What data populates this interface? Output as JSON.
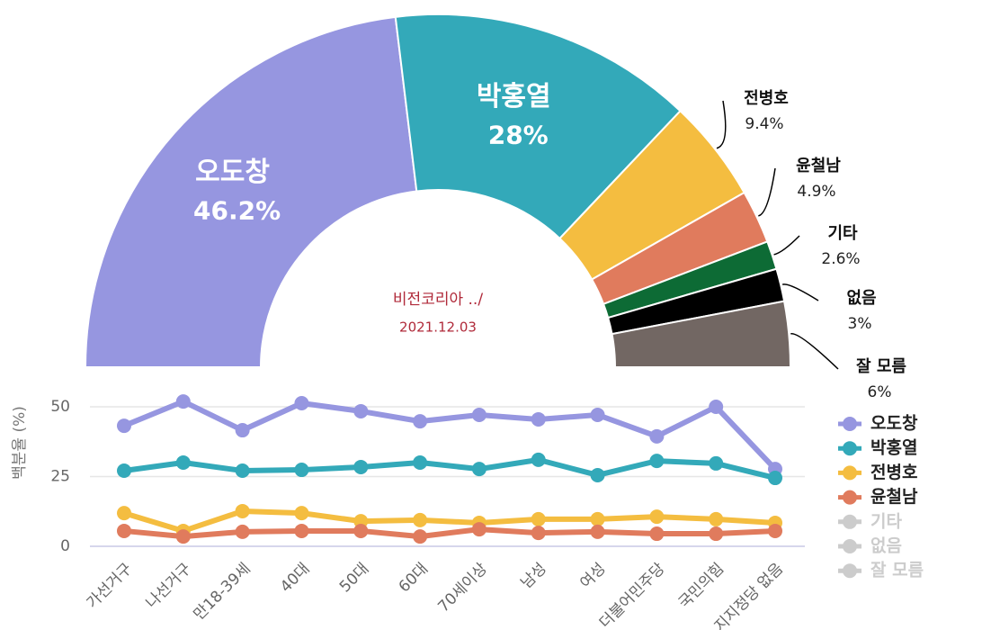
{
  "chart_data": [
    {
      "type": "pie",
      "title": "비전코리아 ../",
      "subtitle": "2021.12.03",
      "categories": [
        "오도창",
        "박홍열",
        "전병호",
        "윤철남",
        "기타",
        "없음",
        "잘 모름"
      ],
      "values": [
        46.2,
        28,
        9.4,
        4.9,
        2.6,
        3,
        6
      ],
      "value_labels": [
        "46.2%",
        "28%",
        "9.4%",
        "4.9%",
        "2.6%",
        "3%",
        "6%"
      ],
      "colors": [
        "#9696e0",
        "#33a9b9",
        "#f4bd40",
        "#e07b5d",
        "#0d6b35",
        "#000000",
        "#726763"
      ]
    },
    {
      "type": "line",
      "ylabel": "백분율 (%)",
      "categories": [
        "가선거구",
        "나선거구",
        "만18-39세",
        "40대",
        "50대",
        "60대",
        "70세이상",
        "남성",
        "여성",
        "더불어민주당",
        "국민의힘",
        "지지정당 없음"
      ],
      "ylim": [
        0,
        60
      ],
      "yticks": [
        0,
        25,
        50
      ],
      "grid": true,
      "series": [
        {
          "name": "오도창",
          "color": "#9696e0",
          "visible": true,
          "values": [
            43.2,
            51.9,
            41.6,
            51.3,
            48.4,
            44.8,
            47.1,
            45.5,
            47.1,
            39.4,
            50,
            27.7
          ]
        },
        {
          "name": "박홍열",
          "color": "#33a9b9",
          "visible": true,
          "values": [
            27.1,
            30,
            27.1,
            27.4,
            28.4,
            30,
            27.7,
            31,
            25.5,
            30.6,
            29.7,
            24.5
          ]
        },
        {
          "name": "전병호",
          "color": "#f4bd40",
          "visible": true,
          "values": [
            11.9,
            5.5,
            12.6,
            11.9,
            9,
            9.4,
            8.4,
            9.7,
            9.7,
            10.6,
            9.7,
            8.4
          ]
        },
        {
          "name": "윤철남",
          "color": "#e07b5d",
          "visible": true,
          "values": [
            5.5,
            3.5,
            5.2,
            5.5,
            5.5,
            3.5,
            6.1,
            4.8,
            5.2,
            4.5,
            4.5,
            5.5
          ]
        },
        {
          "name": "기타",
          "color": "#0d6b35",
          "visible": false,
          "values": [
            null,
            null,
            null,
            null,
            null,
            null,
            null,
            null,
            null,
            null,
            null,
            null
          ]
        },
        {
          "name": "없음",
          "color": "#000000",
          "visible": false,
          "values": [
            null,
            null,
            null,
            null,
            null,
            null,
            null,
            null,
            null,
            null,
            null,
            null
          ]
        },
        {
          "name": "잘 모름",
          "color": "#726763",
          "visible": false,
          "values": [
            null,
            null,
            null,
            null,
            null,
            null,
            null,
            null,
            null,
            null,
            null,
            null
          ]
        }
      ]
    }
  ]
}
